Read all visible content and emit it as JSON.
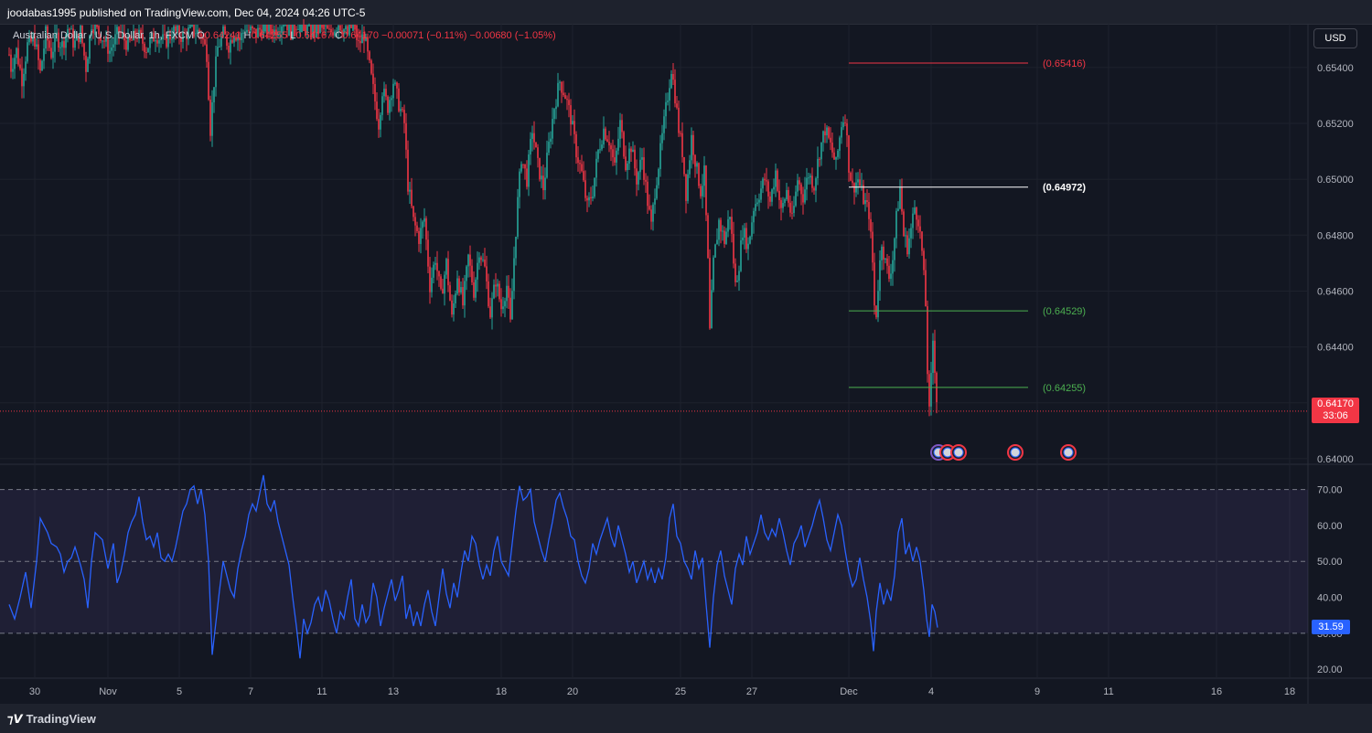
{
  "header": {
    "published_text": "joodabas1995 published on TradingView.com, Dec 04, 2024 04:26 UTC-5"
  },
  "legend": {
    "symbol": "Australian Dollar / U.S. Dollar, 1h, FXCM",
    "o_label": "O",
    "o_value": "0.64241",
    "h_label": "H",
    "h_value": "0.64255",
    "l_label": "L",
    "l_value": "0.64167",
    "c_label": "C",
    "c_value": "0.64170",
    "change": "−0.00071 (−0.11%)",
    "change2": "−0.00680 (−1.05%)"
  },
  "currency_button": "USD",
  "last_price": {
    "value": "0.64170",
    "countdown": "33:06"
  },
  "rsi_last": "31.59",
  "levels": [
    {
      "label": "(0.65416)",
      "value": 0.65416,
      "color": "#f23645"
    },
    {
      "label": "(0.64972)",
      "value": 0.64972,
      "color": "#ffffff"
    },
    {
      "label": "(0.64529)",
      "value": 0.64529,
      "color": "#4caf50"
    },
    {
      "label": "(0.64255)",
      "value": 0.64255,
      "color": "#4caf50"
    }
  ],
  "price_axis": [
    "0.65400",
    "0.65200",
    "0.65000",
    "0.64800",
    "0.64600",
    "0.64400",
    "0.64200",
    "0.64000"
  ],
  "rsi_axis": [
    "70.00",
    "60.00",
    "50.00",
    "40.00",
    "30.00",
    "20.00"
  ],
  "time_axis": [
    "30",
    "Nov",
    "5",
    "7",
    "11",
    "13",
    "18",
    "20",
    "25",
    "27",
    "Dec",
    "4",
    "9",
    "11",
    "16",
    "18"
  ],
  "footer": {
    "brand": "TradingView"
  },
  "colors": {
    "background": "#131722",
    "up": "#26a69a",
    "down": "#f23645",
    "rsi": "#2962ff",
    "rsi_band": "#7e57c2"
  },
  "chart_data": {
    "type": "line",
    "price_ylim": [
      0.6398,
      0.6555
    ],
    "rsi_ylim": [
      18,
      76
    ],
    "price_path": [
      [
        0,
        0.6552
      ],
      [
        6,
        0.6554
      ],
      [
        12,
        0.654
      ],
      [
        18,
        0.6546
      ],
      [
        24,
        0.6536
      ],
      [
        30,
        0.6548
      ],
      [
        38,
        0.655
      ],
      [
        44,
        0.6538
      ],
      [
        50,
        0.6552
      ],
      [
        56,
        0.6545
      ],
      [
        62,
        0.6551
      ],
      [
        68,
        0.6548
      ],
      [
        75,
        0.6555
      ],
      [
        81,
        0.6548
      ],
      [
        88,
        0.6553
      ],
      [
        94,
        0.654
      ],
      [
        100,
        0.6556
      ],
      [
        110,
        0.6552
      ],
      [
        120,
        0.6546
      ],
      [
        130,
        0.6553
      ],
      [
        140,
        0.6548
      ],
      [
        150,
        0.6552
      ],
      [
        160,
        0.6547
      ],
      [
        170,
        0.6552
      ],
      [
        180,
        0.6549
      ],
      [
        190,
        0.6553
      ],
      [
        200,
        0.6551
      ],
      [
        210,
        0.6554
      ],
      [
        220,
        0.6552
      ],
      [
        226,
        0.6545
      ],
      [
        230,
        0.6518
      ],
      [
        234,
        0.6535
      ],
      [
        238,
        0.6547
      ],
      [
        244,
        0.6552
      ],
      [
        250,
        0.6548
      ],
      [
        256,
        0.6553
      ],
      [
        262,
        0.655
      ],
      [
        268,
        0.6554
      ],
      [
        280,
        0.6552
      ],
      [
        290,
        0.6556
      ],
      [
        300,
        0.6553
      ],
      [
        310,
        0.6557
      ],
      [
        320,
        0.6555
      ],
      [
        330,
        0.6557
      ],
      [
        340,
        0.6554
      ],
      [
        350,
        0.6556
      ],
      [
        360,
        0.6552
      ],
      [
        370,
        0.6556
      ],
      [
        380,
        0.6552
      ],
      [
        386,
        0.6556
      ],
      [
        392,
        0.6548
      ],
      [
        398,
        0.6552
      ],
      [
        404,
        0.654
      ],
      [
        410,
        0.6528
      ],
      [
        414,
        0.652
      ],
      [
        418,
        0.6532
      ],
      [
        424,
        0.6526
      ],
      [
        430,
        0.6535
      ],
      [
        436,
        0.6527
      ],
      [
        442,
        0.652
      ],
      [
        446,
        0.6498
      ],
      [
        452,
        0.6485
      ],
      [
        458,
        0.6479
      ],
      [
        464,
        0.6486
      ],
      [
        470,
        0.6462
      ],
      [
        476,
        0.6472
      ],
      [
        482,
        0.6458
      ],
      [
        488,
        0.647
      ],
      [
        494,
        0.645
      ],
      [
        500,
        0.6466
      ],
      [
        506,
        0.6455
      ],
      [
        512,
        0.6472
      ],
      [
        518,
        0.646
      ],
      [
        524,
        0.6475
      ],
      [
        530,
        0.6468
      ],
      [
        536,
        0.6452
      ],
      [
        542,
        0.6464
      ],
      [
        548,
        0.6454
      ],
      [
        554,
        0.6462
      ],
      [
        558,
        0.6448
      ],
      [
        562,
        0.6472
      ],
      [
        566,
        0.6492
      ],
      [
        570,
        0.6508
      ],
      [
        576,
        0.65
      ],
      [
        582,
        0.6518
      ],
      [
        588,
        0.6505
      ],
      [
        594,
        0.6497
      ],
      [
        600,
        0.6512
      ],
      [
        606,
        0.6526
      ],
      [
        612,
        0.6535
      ],
      [
        618,
        0.653
      ],
      [
        624,
        0.6522
      ],
      [
        630,
        0.651
      ],
      [
        636,
        0.6502
      ],
      [
        642,
        0.649
      ],
      [
        648,
        0.6496
      ],
      [
        654,
        0.651
      ],
      [
        660,
        0.6518
      ],
      [
        666,
        0.6514
      ],
      [
        672,
        0.6504
      ],
      [
        678,
        0.652
      ],
      [
        684,
        0.6506
      ],
      [
        690,
        0.6512
      ],
      [
        696,
        0.65
      ],
      [
        702,
        0.6508
      ],
      [
        708,
        0.6492
      ],
      [
        712,
        0.6483
      ],
      [
        716,
        0.6496
      ],
      [
        722,
        0.651
      ],
      [
        728,
        0.6525
      ],
      [
        734,
        0.654
      ],
      [
        738,
        0.653
      ],
      [
        742,
        0.6518
      ],
      [
        746,
        0.651
      ],
      [
        750,
        0.6495
      ],
      [
        756,
        0.6515
      ],
      [
        762,
        0.6503
      ],
      [
        766,
        0.6496
      ],
      [
        770,
        0.6502
      ],
      [
        774,
        0.647
      ],
      [
        776,
        0.6445
      ],
      [
        780,
        0.647
      ],
      [
        786,
        0.6485
      ],
      [
        792,
        0.6478
      ],
      [
        798,
        0.6488
      ],
      [
        804,
        0.6462
      ],
      [
        808,
        0.647
      ],
      [
        812,
        0.6482
      ],
      [
        818,
        0.6476
      ],
      [
        824,
        0.649
      ],
      [
        830,
        0.6495
      ],
      [
        836,
        0.65
      ],
      [
        842,
        0.6492
      ],
      [
        848,
        0.6503
      ],
      [
        854,
        0.6488
      ],
      [
        860,
        0.6496
      ],
      [
        866,
        0.6485
      ],
      [
        872,
        0.65
      ],
      [
        878,
        0.6494
      ],
      [
        884,
        0.6502
      ],
      [
        890,
        0.6498
      ],
      [
        896,
        0.651
      ],
      [
        902,
        0.6518
      ],
      [
        908,
        0.6512
      ],
      [
        914,
        0.6505
      ],
      [
        920,
        0.652
      ],
      [
        924,
        0.6523
      ],
      [
        928,
        0.6505
      ],
      [
        932,
        0.6497
      ],
      [
        938,
        0.65
      ],
      [
        944,
        0.6493
      ],
      [
        950,
        0.6488
      ],
      [
        954,
        0.647
      ],
      [
        957,
        0.6447
      ],
      [
        960,
        0.6462
      ],
      [
        964,
        0.6478
      ],
      [
        968,
        0.647
      ],
      [
        972,
        0.6465
      ],
      [
        976,
        0.6472
      ],
      [
        980,
        0.6486
      ],
      [
        984,
        0.6497
      ],
      [
        988,
        0.648
      ],
      [
        992,
        0.6476
      ],
      [
        996,
        0.6482
      ],
      [
        1000,
        0.649
      ],
      [
        1004,
        0.6486
      ],
      [
        1008,
        0.6474
      ],
      [
        1012,
        0.6455
      ],
      [
        1015,
        0.642
      ],
      [
        1017,
        0.6412
      ],
      [
        1019,
        0.6445
      ],
      [
        1021,
        0.644
      ],
      [
        1023,
        0.6426
      ],
      [
        1025,
        0.6417
      ]
    ],
    "rsi_path": [
      [
        10,
        38
      ],
      [
        16,
        34
      ],
      [
        22,
        40
      ],
      [
        28,
        47
      ],
      [
        34,
        37
      ],
      [
        40,
        50
      ],
      [
        44,
        62
      ],
      [
        48,
        60
      ],
      [
        52,
        58
      ],
      [
        56,
        55
      ],
      [
        62,
        54
      ],
      [
        66,
        52
      ],
      [
        70,
        47
      ],
      [
        74,
        50
      ],
      [
        78,
        51
      ],
      [
        82,
        54
      ],
      [
        88,
        49
      ],
      [
        92,
        45
      ],
      [
        96,
        37
      ],
      [
        100,
        50
      ],
      [
        104,
        58
      ],
      [
        108,
        57
      ],
      [
        112,
        56
      ],
      [
        118,
        48
      ],
      [
        124,
        55
      ],
      [
        128,
        44
      ],
      [
        132,
        47
      ],
      [
        136,
        52
      ],
      [
        140,
        58
      ],
      [
        144,
        61
      ],
      [
        148,
        63
      ],
      [
        152,
        68
      ],
      [
        156,
        61
      ],
      [
        160,
        56
      ],
      [
        164,
        57
      ],
      [
        168,
        54
      ],
      [
        172,
        58
      ],
      [
        176,
        51
      ],
      [
        180,
        50
      ],
      [
        184,
        52
      ],
      [
        188,
        50
      ],
      [
        192,
        54
      ],
      [
        196,
        59
      ],
      [
        200,
        64
      ],
      [
        204,
        66
      ],
      [
        208,
        70
      ],
      [
        212,
        71
      ],
      [
        216,
        66
      ],
      [
        220,
        70
      ],
      [
        224,
        63
      ],
      [
        228,
        50
      ],
      [
        232,
        24
      ],
      [
        236,
        33
      ],
      [
        240,
        42
      ],
      [
        244,
        50
      ],
      [
        248,
        46
      ],
      [
        252,
        42
      ],
      [
        256,
        40
      ],
      [
        260,
        48
      ],
      [
        264,
        53
      ],
      [
        268,
        57
      ],
      [
        272,
        63
      ],
      [
        276,
        66
      ],
      [
        280,
        64
      ],
      [
        284,
        69
      ],
      [
        288,
        74
      ],
      [
        292,
        66
      ],
      [
        296,
        64
      ],
      [
        300,
        67
      ],
      [
        304,
        61
      ],
      [
        308,
        57
      ],
      [
        312,
        53
      ],
      [
        316,
        49
      ],
      [
        320,
        40
      ],
      [
        324,
        32
      ],
      [
        328,
        23
      ],
      [
        332,
        34
      ],
      [
        336,
        30
      ],
      [
        340,
        33
      ],
      [
        344,
        38
      ],
      [
        348,
        40
      ],
      [
        352,
        36
      ],
      [
        356,
        42
      ],
      [
        360,
        39
      ],
      [
        364,
        34
      ],
      [
        368,
        30
      ],
      [
        372,
        36
      ],
      [
        376,
        34
      ],
      [
        380,
        40
      ],
      [
        384,
        45
      ],
      [
        388,
        34
      ],
      [
        392,
        32
      ],
      [
        396,
        38
      ],
      [
        400,
        33
      ],
      [
        404,
        35
      ],
      [
        408,
        44
      ],
      [
        412,
        40
      ],
      [
        416,
        32
      ],
      [
        420,
        37
      ],
      [
        424,
        41
      ],
      [
        428,
        45
      ],
      [
        432,
        39
      ],
      [
        436,
        42
      ],
      [
        440,
        46
      ],
      [
        444,
        34
      ],
      [
        448,
        38
      ],
      [
        452,
        32
      ],
      [
        456,
        36
      ],
      [
        460,
        32
      ],
      [
        464,
        38
      ],
      [
        468,
        42
      ],
      [
        472,
        36
      ],
      [
        476,
        32
      ],
      [
        480,
        40
      ],
      [
        484,
        48
      ],
      [
        488,
        41
      ],
      [
        492,
        37
      ],
      [
        496,
        44
      ],
      [
        500,
        40
      ],
      [
        504,
        47
      ],
      [
        508,
        53
      ],
      [
        512,
        50
      ],
      [
        516,
        57
      ],
      [
        520,
        55
      ],
      [
        524,
        49
      ],
      [
        528,
        45
      ],
      [
        532,
        49
      ],
      [
        536,
        46
      ],
      [
        540,
        53
      ],
      [
        544,
        57
      ],
      [
        548,
        50
      ],
      [
        552,
        48
      ],
      [
        556,
        46
      ],
      [
        560,
        55
      ],
      [
        564,
        64
      ],
      [
        568,
        71
      ],
      [
        572,
        67
      ],
      [
        576,
        68
      ],
      [
        580,
        70
      ],
      [
        584,
        61
      ],
      [
        588,
        57
      ],
      [
        592,
        53
      ],
      [
        596,
        50
      ],
      [
        600,
        56
      ],
      [
        604,
        61
      ],
      [
        608,
        67
      ],
      [
        612,
        69
      ],
      [
        616,
        65
      ],
      [
        620,
        62
      ],
      [
        624,
        57
      ],
      [
        628,
        56
      ],
      [
        632,
        50
      ],
      [
        636,
        46
      ],
      [
        640,
        44
      ],
      [
        644,
        48
      ],
      [
        648,
        55
      ],
      [
        652,
        52
      ],
      [
        656,
        56
      ],
      [
        660,
        59
      ],
      [
        664,
        62
      ],
      [
        668,
        57
      ],
      [
        672,
        54
      ],
      [
        676,
        60
      ],
      [
        680,
        56
      ],
      [
        684,
        52
      ],
      [
        688,
        47
      ],
      [
        692,
        50
      ],
      [
        696,
        44
      ],
      [
        700,
        47
      ],
      [
        704,
        50
      ],
      [
        708,
        45
      ],
      [
        712,
        48
      ],
      [
        716,
        44
      ],
      [
        720,
        48
      ],
      [
        724,
        45
      ],
      [
        728,
        51
      ],
      [
        732,
        62
      ],
      [
        736,
        66
      ],
      [
        740,
        57
      ],
      [
        744,
        55
      ],
      [
        748,
        50
      ],
      [
        752,
        48
      ],
      [
        756,
        45
      ],
      [
        760,
        53
      ],
      [
        764,
        48
      ],
      [
        768,
        51
      ],
      [
        772,
        38
      ],
      [
        776,
        26
      ],
      [
        780,
        40
      ],
      [
        784,
        49
      ],
      [
        788,
        53
      ],
      [
        792,
        46
      ],
      [
        796,
        42
      ],
      [
        800,
        38
      ],
      [
        804,
        48
      ],
      [
        808,
        52
      ],
      [
        812,
        49
      ],
      [
        816,
        57
      ],
      [
        820,
        52
      ],
      [
        824,
        55
      ],
      [
        828,
        58
      ],
      [
        832,
        63
      ],
      [
        836,
        58
      ],
      [
        840,
        56
      ],
      [
        844,
        59
      ],
      [
        848,
        57
      ],
      [
        852,
        62
      ],
      [
        856,
        58
      ],
      [
        860,
        53
      ],
      [
        864,
        49
      ],
      [
        868,
        55
      ],
      [
        872,
        57
      ],
      [
        876,
        60
      ],
      [
        880,
        54
      ],
      [
        884,
        57
      ],
      [
        888,
        60
      ],
      [
        892,
        64
      ],
      [
        896,
        67
      ],
      [
        900,
        62
      ],
      [
        904,
        56
      ],
      [
        908,
        53
      ],
      [
        912,
        58
      ],
      [
        916,
        63
      ],
      [
        920,
        60
      ],
      [
        924,
        53
      ],
      [
        928,
        47
      ],
      [
        932,
        43
      ],
      [
        936,
        45
      ],
      [
        940,
        51
      ],
      [
        944,
        45
      ],
      [
        948,
        40
      ],
      [
        952,
        33
      ],
      [
        955,
        25
      ],
      [
        958,
        36
      ],
      [
        962,
        44
      ],
      [
        966,
        38
      ],
      [
        970,
        42
      ],
      [
        974,
        39
      ],
      [
        978,
        46
      ],
      [
        982,
        58
      ],
      [
        986,
        62
      ],
      [
        990,
        52
      ],
      [
        994,
        55
      ],
      [
        998,
        50
      ],
      [
        1002,
        54
      ],
      [
        1006,
        50
      ],
      [
        1010,
        42
      ],
      [
        1013,
        34
      ],
      [
        1016,
        29
      ],
      [
        1019,
        38
      ],
      [
        1022,
        36
      ],
      [
        1025,
        31.59
      ]
    ]
  }
}
